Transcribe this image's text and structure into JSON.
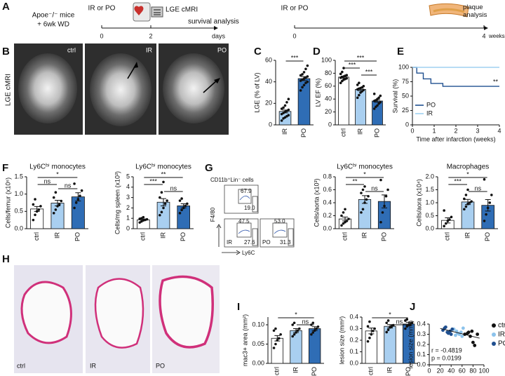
{
  "panel_letters": [
    "A",
    "B",
    "C",
    "D",
    "E",
    "F",
    "G",
    "H",
    "I",
    "J"
  ],
  "schematic": {
    "mouse_model": "Apoe⁻/⁻ mice",
    "diet": "+ 6wk WD",
    "timeline_1": {
      "intervention": "IR or PO",
      "imaging": "LGE cMRI",
      "endpoint": "survival analysis",
      "ticks": [
        "0",
        "2"
      ],
      "unit": "days"
    },
    "timeline_2": {
      "intervention": "IR or PO",
      "endpoint": "plaque analysis",
      "ticks": [
        "0",
        "4"
      ],
      "unit": "weeks"
    }
  },
  "mri_images": {
    "side_label": "LGE cMRI",
    "labels": [
      "ctrl",
      "IR",
      "PO"
    ]
  },
  "flow_cytometry": {
    "gate_title": "CD11b⁺Lin⁻ cells",
    "y_axis": "F4/80",
    "x_axis": "Ly6C",
    "plots": [
      {
        "gates": [
          "67.9",
          "19.0"
        ]
      },
      {
        "label": "IR",
        "gates": [
          "47.5",
          "27.6"
        ]
      },
      {
        "label": "PO",
        "gates": [
          "53.0",
          "31.3"
        ]
      }
    ]
  },
  "histology_images": {
    "labels": [
      "ctrl",
      "IR",
      "PO"
    ]
  },
  "chart_data": [
    {
      "type": "bar",
      "ylabel": "LGE (% of LV)",
      "categories": [
        "IR",
        "PO"
      ],
      "values": [
        12.5,
        43
      ],
      "errors": [
        1.3,
        1.8
      ],
      "colors": [
        "#a9cff0",
        "#2f6db5"
      ],
      "points": [
        [
          4,
          6,
          7,
          8,
          9,
          10,
          11,
          12,
          13,
          14,
          15,
          16,
          18,
          21,
          24
        ],
        [
          32,
          35,
          37,
          39,
          40,
          41,
          42,
          43,
          44,
          45,
          46,
          47,
          49,
          52,
          55
        ]
      ],
      "ylim": [
        0,
        60
      ],
      "yticks": [
        0,
        20,
        40,
        60
      ],
      "significance": [
        "***"
      ]
    },
    {
      "type": "bar",
      "ylabel": "LV EF (%)",
      "categories": [
        "ctrl",
        "IR",
        "PO"
      ],
      "values": [
        74,
        55,
        37
      ],
      "errors": [
        1.5,
        2,
        2
      ],
      "colors": [
        "#ffffff",
        "#a9cff0",
        "#2f6db5"
      ],
      "points": [
        [
          65,
          68,
          70,
          71,
          72,
          73,
          74,
          75,
          76,
          77,
          79,
          82,
          88
        ],
        [
          42,
          46,
          50,
          52,
          54,
          55,
          56,
          57,
          58,
          60,
          62,
          65
        ],
        [
          25,
          28,
          30,
          33,
          35,
          37,
          38,
          40,
          42,
          45,
          48
        ]
      ],
      "ylim": [
        0,
        100
      ],
      "yticks": [
        0,
        20,
        40,
        60,
        80,
        100
      ],
      "significance": [
        "***",
        "***",
        "***"
      ]
    },
    {
      "type": "line",
      "ylabel": "Survival (%)",
      "xlabel": "Time after infarction (weeks)",
      "series": [
        {
          "name": "PO",
          "color": "#1f4f8f",
          "x": [
            0,
            0.2,
            0.2,
            0.5,
            0.5,
            0.85,
            0.85,
            1.4,
            1.4,
            4
          ],
          "values": [
            100,
            100,
            90,
            90,
            80,
            80,
            72,
            72,
            67,
            67
          ]
        },
        {
          "name": "IR",
          "color": "#9fd0f0",
          "x": [
            0,
            4
          ],
          "values": [
            100,
            100
          ]
        }
      ],
      "xlim": [
        0,
        4
      ],
      "xticks": [
        0,
        1,
        2,
        3,
        4
      ],
      "ylim": [
        0,
        100
      ],
      "yticks": [
        0,
        25,
        50,
        75,
        100
      ],
      "annotation": "**",
      "legend": "lower left"
    },
    {
      "type": "bar",
      "title": "Ly6Cʰⁱ monocytes",
      "ylabel": "Cells/femur (x10⁶)",
      "categories": [
        "ctrl",
        "IR",
        "PO"
      ],
      "values": [
        0.57,
        0.74,
        0.92
      ],
      "errors": [
        0.07,
        0.08,
        0.12
      ],
      "colors": [
        "#ffffff",
        "#a9cff0",
        "#2f6db5"
      ],
      "points": [
        [
          0.25,
          0.4,
          0.5,
          0.55,
          0.65,
          0.7,
          0.85
        ],
        [
          0.45,
          0.55,
          0.65,
          0.7,
          0.8,
          0.9,
          1.05
        ],
        [
          0.6,
          0.75,
          0.85,
          0.95,
          1.1,
          1.3
        ]
      ],
      "ylim": [
        0,
        1.5
      ],
      "yticks": [
        {
          "value": 0,
          "label": "0.0"
        },
        0.5,
        {
          "value": 1,
          "label": "1.0"
        },
        1.5
      ],
      "significance": [
        "*",
        "ns",
        "ns"
      ]
    },
    {
      "type": "bar",
      "title": "Ly6Cʰⁱ monocytes",
      "ylabel": "Cells/mg spleen (x10³)",
      "categories": [
        "ctrl",
        "IR",
        "PO"
      ],
      "values": [
        0.85,
        2.55,
        2.2
      ],
      "errors": [
        0.08,
        0.35,
        0.2
      ],
      "colors": [
        "#ffffff",
        "#a9cff0",
        "#2f6db5"
      ],
      "points": [
        [
          0.6,
          0.7,
          0.8,
          0.85,
          0.9,
          0.95,
          1.0,
          1.1
        ],
        [
          1.3,
          1.6,
          2.0,
          2.4,
          2.7,
          3.0,
          3.5,
          4.5
        ],
        [
          1.5,
          1.8,
          2.0,
          2.2,
          2.4,
          2.7,
          2.9
        ]
      ],
      "ylim": [
        0,
        5
      ],
      "yticks": [
        0,
        1,
        2,
        3,
        4,
        5
      ],
      "significance": [
        "**",
        "***",
        "ns"
      ]
    },
    {
      "type": "bar",
      "title": "Ly6Cʰⁱ monocytes",
      "ylabel": "Cells/aorta (x10³)",
      "categories": [
        "ctrl",
        "IR",
        "PO"
      ],
      "values": [
        0.15,
        0.45,
        0.42
      ],
      "errors": [
        0.03,
        0.06,
        0.1
      ],
      "colors": [
        "#ffffff",
        "#a9cff0",
        "#2f6db5"
      ],
      "points": [
        [
          0.05,
          0.08,
          0.1,
          0.12,
          0.15,
          0.2,
          0.25,
          0.3
        ],
        [
          0.25,
          0.3,
          0.4,
          0.45,
          0.5,
          0.55,
          0.6,
          0.65
        ],
        [
          0.1,
          0.25,
          0.35,
          0.5,
          0.6,
          0.75
        ]
      ],
      "ylim": [
        0,
        0.8
      ],
      "yticks": [
        {
          "value": 0,
          "label": "0.0"
        },
        0.2,
        0.4,
        0.6,
        0.8
      ],
      "significance": [
        "*",
        "**",
        "ns"
      ]
    },
    {
      "type": "bar",
      "title": "Macrophages",
      "ylabel": "Cells/aora (x10⁴)",
      "categories": [
        "ctrl",
        "IR",
        "PO"
      ],
      "values": [
        0.32,
        1.03,
        0.9
      ],
      "errors": [
        0.1,
        0.1,
        0.22
      ],
      "colors": [
        "#ffffff",
        "#a9cff0",
        "#2f6db5"
      ],
      "points": [
        [
          0.1,
          0.2,
          0.3,
          0.35,
          0.45,
          0.7
        ],
        [
          0.75,
          0.85,
          0.95,
          1.0,
          1.05,
          1.15,
          1.3,
          1.5
        ],
        [
          0.3,
          0.55,
          0.8,
          1.0,
          1.3,
          1.9
        ]
      ],
      "ylim": [
        0,
        2
      ],
      "yticks": [
        {
          "value": 0,
          "label": "0.0"
        },
        0.5,
        {
          "value": 1,
          "label": "1.0"
        },
        1.5,
        {
          "value": 2,
          "label": "2.0"
        }
      ],
      "significance": [
        "*",
        "***",
        "ns"
      ]
    },
    {
      "type": "bar",
      "ylabel": "mac3+ area (mm²)",
      "categories": [
        "ctrl",
        "IR",
        "PO"
      ],
      "values": [
        0.065,
        0.085,
        0.09
      ],
      "errors": [
        0.007,
        0.005,
        0.005
      ],
      "colors": [
        "#ffffff",
        "#a9cff0",
        "#2f6db5"
      ],
      "points": [
        [
          0.04,
          0.05,
          0.06,
          0.065,
          0.075,
          0.085,
          0.09
        ],
        [
          0.07,
          0.075,
          0.08,
          0.085,
          0.09,
          0.1,
          0.105
        ],
        [
          0.075,
          0.08,
          0.085,
          0.09,
          0.095,
          0.1,
          0.105
        ]
      ],
      "ylim": [
        0,
        0.12
      ],
      "yticks": [
        {
          "value": 0,
          "label": "0.00"
        },
        0.05,
        {
          "value": 0.1,
          "label": "0.10"
        }
      ],
      "significance": [
        "*",
        "ns"
      ]
    },
    {
      "type": "bar",
      "ylabel": "lesion size (mm²)",
      "categories": [
        "ctrl",
        "IR",
        "PO"
      ],
      "values": [
        0.28,
        0.32,
        0.34
      ],
      "errors": [
        0.025,
        0.015,
        0.015
      ],
      "colors": [
        "#ffffff",
        "#a9cff0",
        "#2f6db5"
      ],
      "points": [
        [
          0.19,
          0.22,
          0.25,
          0.28,
          0.3,
          0.32,
          0.36
        ],
        [
          0.27,
          0.29,
          0.31,
          0.32,
          0.33,
          0.35,
          0.37
        ],
        [
          0.3,
          0.32,
          0.33,
          0.34,
          0.35,
          0.37,
          0.38
        ]
      ],
      "ylim": [
        0,
        0.4
      ],
      "yticks": [
        {
          "value": 0,
          "label": "0.0"
        },
        0.1,
        0.2,
        0.3,
        0.4
      ],
      "significance": [
        "*",
        "ns"
      ]
    },
    {
      "type": "scatter",
      "xlabel": "LV EF (%)",
      "ylabel": "lesion size (mm²)",
      "series": [
        {
          "name": "ctrl",
          "color": "#111111",
          "x": [
            65,
            72,
            75,
            80,
            83,
            88,
            70,
            78
          ],
          "values": [
            0.3,
            0.32,
            0.28,
            0.22,
            0.19,
            0.3,
            0.31,
            0.33
          ]
        },
        {
          "name": "IR",
          "color": "#8cc3ec",
          "x": [
            45,
            50,
            55,
            58,
            60,
            62,
            52,
            48
          ],
          "values": [
            0.35,
            0.33,
            0.3,
            0.32,
            0.28,
            0.36,
            0.31,
            0.29
          ]
        },
        {
          "name": "PO",
          "color": "#1f4f8f",
          "x": [
            25,
            30,
            35,
            38,
            40,
            42,
            28,
            33
          ],
          "values": [
            0.34,
            0.37,
            0.31,
            0.33,
            0.3,
            0.35,
            0.36,
            0.32
          ]
        }
      ],
      "xlim": [
        0,
        100
      ],
      "xticks": [
        0,
        20,
        40,
        60,
        80,
        100
      ],
      "ylim": [
        0,
        0.4
      ],
      "yticks": [
        {
          "value": 0,
          "label": "0.0"
        },
        0.1,
        0.2,
        0.3,
        0.4
      ],
      "annotations": [
        "r = -0.4819",
        "p = 0.0199"
      ],
      "legend": "right"
    }
  ]
}
